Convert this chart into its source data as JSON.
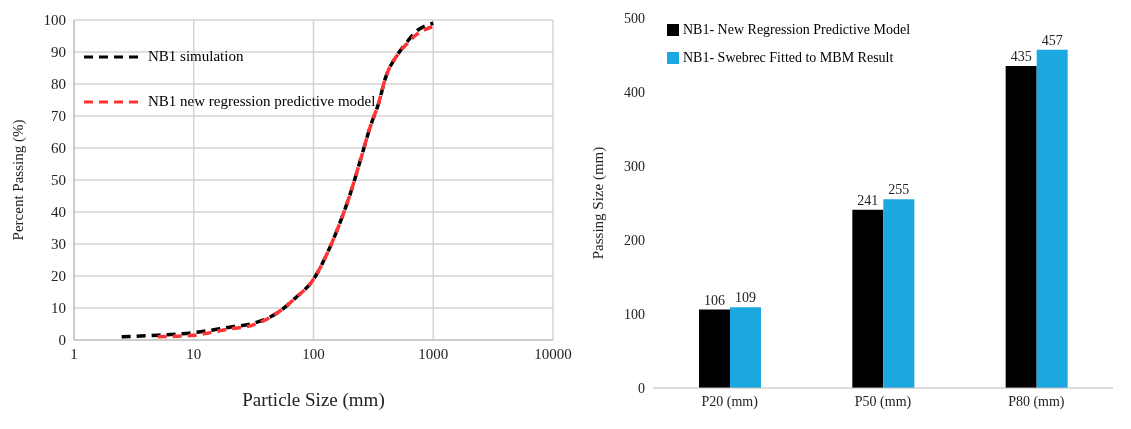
{
  "chart_data": [
    {
      "type": "line",
      "xlabel": "Particle Size (mm)",
      "ylabel": "Percent Passing (%)",
      "log": "x",
      "xlim": [
        1,
        10000
      ],
      "xticks": [
        1,
        10,
        100,
        1000,
        10000
      ],
      "ylim": [
        0,
        100
      ],
      "yticks": [
        0,
        10,
        20,
        30,
        40,
        50,
        60,
        70,
        80,
        90,
        100
      ],
      "grid": true,
      "legend": "top left",
      "marker": "none",
      "line_style": "dashed",
      "series": [
        {
          "name": "NB1 simulation",
          "color": "#000000",
          "x": [
            2.5,
            5,
            10,
            20,
            30,
            50,
            70,
            100,
            130,
            160,
            200,
            250,
            300,
            350,
            400,
            500,
            600,
            700,
            1000
          ],
          "values": [
            1,
            1.5,
            2.3,
            4,
            5,
            8.5,
            13,
            19,
            27,
            35,
            45,
            57,
            67,
            74,
            82,
            89,
            93,
            96,
            99
          ]
        },
        {
          "name": "NB1 new regression predictive model",
          "color": "#ff3333",
          "x": [
            5,
            10,
            20,
            30,
            50,
            70,
            100,
            130,
            160,
            200,
            250,
            300,
            350,
            400,
            500,
            600,
            700,
            1000
          ],
          "values": [
            1,
            1.5,
            3.5,
            4.5,
            8.5,
            13,
            19,
            27,
            35,
            45,
            57,
            67,
            74,
            82,
            89,
            92.5,
            95,
            98
          ]
        }
      ]
    },
    {
      "type": "bar",
      "categories": [
        "P20 (mm)",
        "P50 (mm)",
        "P80 (mm)"
      ],
      "ylabel": "Passing Size (mm)",
      "ylim": [
        0,
        500
      ],
      "yticks": [
        0,
        100,
        200,
        300,
        400,
        500
      ],
      "legend": "top left",
      "data_labels": true,
      "series": [
        {
          "name": "NB1- New Regression Predictive Model",
          "color": "#000000",
          "values": [
            106,
            241,
            435
          ]
        },
        {
          "name": "NB1- Swebrec Fitted to MBM Result",
          "color": "#1ba8e0",
          "values": [
            109,
            255,
            457
          ]
        }
      ]
    }
  ]
}
